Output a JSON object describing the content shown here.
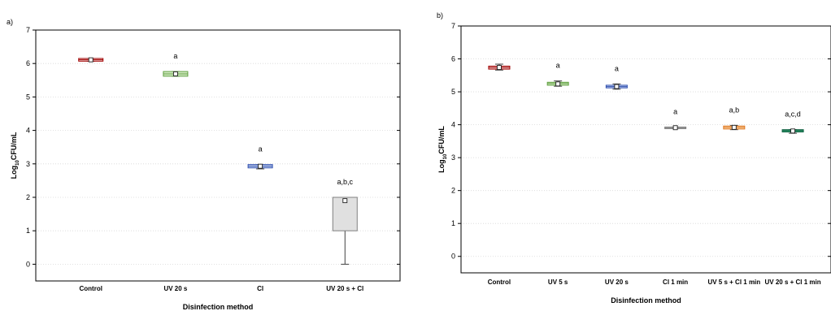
{
  "chart_data": [
    {
      "type": "box",
      "panel_label": "a)",
      "xlabel": "Disinfection method",
      "ylabel_main": "Log",
      "ylabel_sub": "10",
      "ylabel_rest": "CFU/mL",
      "ylim": [
        -0.5,
        7
      ],
      "yticks": [
        0,
        1,
        2,
        3,
        4,
        5,
        6,
        7
      ],
      "ytick_labels": [
        "0",
        "1",
        "2",
        "3",
        "4",
        "5",
        "6",
        "7"
      ],
      "grid": true,
      "categories": [
        "Control",
        "UV 20 s",
        "Cl",
        "UV 20 s + Cl"
      ],
      "boxes": [
        {
          "name": "Control",
          "q1": 6.07,
          "q3": 6.15,
          "median": 6.11,
          "min": 6.07,
          "max": 6.15,
          "mean": 6.11,
          "fill": "#f3d6d6",
          "stroke": "#a00000",
          "annotation": ""
        },
        {
          "name": "UV 20 s",
          "q1": 5.62,
          "q3": 5.76,
          "median": 5.69,
          "min": 5.62,
          "max": 5.76,
          "mean": 5.69,
          "fill": "#cfe8c0",
          "stroke": "#60a040",
          "annotation": "a"
        },
        {
          "name": "Cl",
          "q1": 2.88,
          "q3": 2.98,
          "median": 2.93,
          "min": 2.85,
          "max": 2.98,
          "mean": 2.93,
          "fill": "#c9d6f0",
          "stroke": "#3050b0",
          "annotation": "a"
        },
        {
          "name": "UV 20 s + Cl",
          "q1": 1.0,
          "q3": 2.0,
          "median": 2.0,
          "min": 0.0,
          "max": 2.0,
          "mean": 1.9,
          "fill": "#e0e0e0",
          "stroke": "#808080",
          "annotation": "a,b,c"
        }
      ]
    },
    {
      "type": "box",
      "panel_label": "b)",
      "xlabel": "Disinfection method",
      "ylabel_main": "Log",
      "ylabel_sub": "10",
      "ylabel_rest": "CFU/mL",
      "ylim": [
        -0.5,
        7
      ],
      "yticks": [
        0,
        1,
        2,
        3,
        4,
        5,
        6,
        7
      ],
      "ytick_labels": [
        "0",
        "1",
        "2",
        "3",
        "4",
        "5",
        "6",
        "7"
      ],
      "grid": true,
      "categories": [
        "Control",
        "UV 5 s",
        "UV 20 s",
        "Cl 1 min",
        "UV 5 s + Cl 1 min",
        "UV 20 s + Cl 1 min"
      ],
      "boxes": [
        {
          "name": "Control",
          "q1": 5.69,
          "q3": 5.78,
          "median": 5.74,
          "min": 5.66,
          "max": 5.84,
          "mean": 5.74,
          "fill": "#f3d6d6",
          "stroke": "#a00000",
          "annotation": ""
        },
        {
          "name": "UV 5 s",
          "q1": 5.2,
          "q3": 5.29,
          "median": 5.25,
          "min": 5.17,
          "max": 5.33,
          "mean": 5.24,
          "fill": "#cfe8c0",
          "stroke": "#60a040",
          "annotation": "a"
        },
        {
          "name": "UV 20 s",
          "q1": 5.12,
          "q3": 5.2,
          "median": 5.16,
          "min": 5.08,
          "max": 5.24,
          "mean": 5.16,
          "fill": "#c9d6f0",
          "stroke": "#3050b0",
          "annotation": "a"
        },
        {
          "name": "Cl 1 min",
          "q1": 3.88,
          "q3": 3.93,
          "median": 3.91,
          "min": 3.88,
          "max": 3.93,
          "mean": 3.91,
          "fill": "#e0e0e0",
          "stroke": "#808080",
          "annotation": "a"
        },
        {
          "name": "UV 5 s + Cl 1 min",
          "q1": 3.87,
          "q3": 3.96,
          "median": 3.92,
          "min": 3.85,
          "max": 3.98,
          "mean": 3.92,
          "fill": "#f8d8b0",
          "stroke": "#e07820",
          "annotation": "a,b"
        },
        {
          "name": "UV 20 s + Cl 1 min",
          "q1": 3.78,
          "q3": 3.85,
          "median": 3.82,
          "min": 3.74,
          "max": 3.85,
          "mean": 3.81,
          "fill": "#40b080",
          "stroke": "#106040",
          "annotation": "a,c,d"
        }
      ]
    }
  ]
}
